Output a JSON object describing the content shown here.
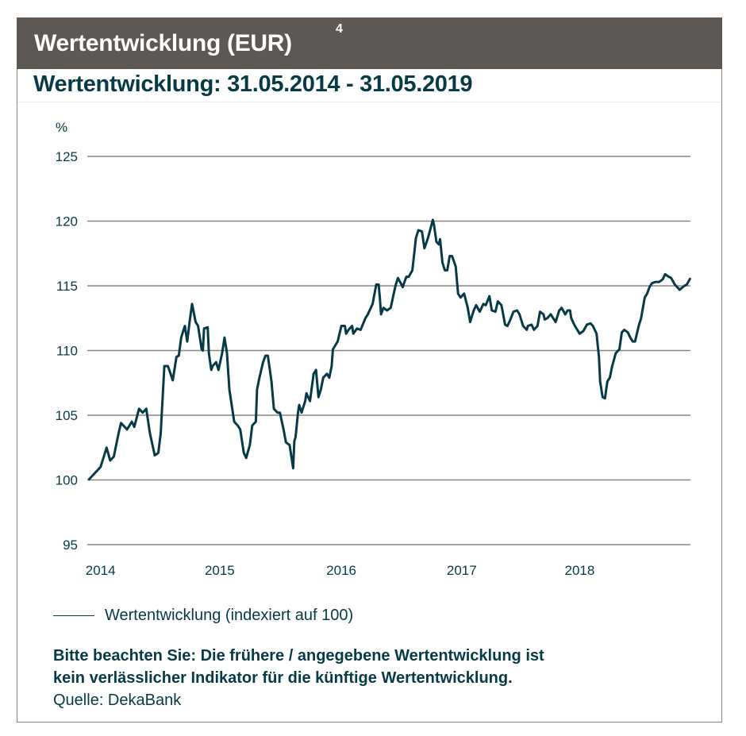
{
  "header": {
    "title": "Wertentwicklung (EUR)",
    "footnote": "4"
  },
  "subtitle": "Wertentwicklung: 31.05.2014 - 31.05.2019",
  "colors": {
    "header_bg": "#5e5854",
    "line": "#063a45",
    "grid": "#8a8480",
    "text": "#063a45"
  },
  "chart_data": {
    "type": "line",
    "ylabel": "%",
    "ylim": [
      95,
      125
    ],
    "yticks": [
      95,
      100,
      105,
      110,
      115,
      120,
      125
    ],
    "xlim": [
      2014.4,
      2019.41
    ],
    "xticks": [
      {
        "label": "2014",
        "at": 2014.51
      },
      {
        "label": "2015",
        "at": 2015.5
      },
      {
        "label": "2016",
        "at": 2016.51
      },
      {
        "label": "2017",
        "at": 2017.51
      },
      {
        "label": "2018",
        "at": 2018.49
      }
    ],
    "grid": "horizontal",
    "legend_position": "bottom-left",
    "series": [
      {
        "name": "Wertentwicklung (indexiert auf 100)",
        "x": [
          2014.41,
          2014.48,
          2014.51,
          2014.56,
          2014.59,
          2014.62,
          2014.66,
          2014.68,
          2014.73,
          2014.77,
          2014.79,
          2014.83,
          2014.86,
          2014.89,
          2014.92,
          2014.96,
          2014.99,
          2015.01,
          2015.04,
          2015.07,
          2015.11,
          2015.14,
          2015.16,
          2015.18,
          2015.21,
          2015.23,
          2015.25,
          2015.27,
          2015.3,
          2015.32,
          2015.35,
          2015.36,
          2015.37,
          2015.4,
          2015.41,
          2015.43,
          2015.44,
          2015.47,
          2015.49,
          2015.52,
          2015.54,
          2015.56,
          2015.58,
          2015.62,
          2015.65,
          2015.67,
          2015.7,
          2015.72,
          2015.75,
          2015.77,
          2015.8,
          2015.81,
          2015.83,
          2015.86,
          2015.88,
          2015.9,
          2015.93,
          2015.95,
          2015.98,
          2016.0,
          2016.03,
          2016.05,
          2016.08,
          2016.11,
          2016.12,
          2016.13,
          2016.15,
          2016.16,
          2016.18,
          2016.21,
          2016.22,
          2016.25,
          2016.28,
          2016.3,
          2016.32,
          2016.34,
          2016.36,
          2016.39,
          2016.41,
          2016.43,
          2016.44,
          2016.48,
          2016.51,
          2016.54,
          2016.55,
          2016.57,
          2016.6,
          2016.61,
          2016.64,
          2016.67,
          2016.71,
          2016.73,
          2016.77,
          2016.8,
          2016.82,
          2016.83,
          2016.84,
          2016.86,
          2016.89,
          2016.92,
          2016.96,
          2016.98,
          2017.01,
          2017.02,
          2017.05,
          2017.07,
          2017.1,
          2017.13,
          2017.15,
          2017.18,
          2017.2,
          2017.23,
          2017.27,
          2017.28,
          2017.3,
          2017.32,
          2017.33,
          2017.35,
          2017.37,
          2017.39,
          2017.41,
          2017.43,
          2017.46,
          2017.48,
          2017.5,
          2017.53,
          2017.56,
          2017.58,
          2017.59,
          2017.61,
          2017.63,
          2017.66,
          2017.69,
          2017.71,
          2017.74,
          2017.76,
          2017.79,
          2017.81,
          2017.84,
          2017.85,
          2017.87,
          2017.89,
          2017.91,
          2017.94,
          2017.97,
          2017.99,
          2018.01,
          2018.02,
          2018.05,
          2018.06,
          2018.09,
          2018.11,
          2018.14,
          2018.16,
          2018.19,
          2018.2,
          2018.22,
          2018.25,
          2018.27,
          2018.29,
          2018.32,
          2018.34,
          2018.37,
          2018.39,
          2018.41,
          2018.42,
          2018.45,
          2018.49,
          2018.52,
          2018.55,
          2018.58,
          2018.6,
          2018.63,
          2018.65,
          2018.66,
          2018.68,
          2018.7,
          2018.72,
          2018.74,
          2018.76,
          2018.79,
          2018.82,
          2018.84,
          2018.86,
          2018.89,
          2018.91,
          2018.93,
          2018.95,
          2018.98,
          2019.0,
          2019.03,
          2019.05,
          2019.07,
          2019.09,
          2019.12,
          2019.15,
          2019.18,
          2019.2,
          2019.23,
          2019.25,
          2019.28,
          2019.3,
          2019.32,
          2019.36,
          2019.38,
          2019.41
        ],
        "values": [
          100.0,
          100.7,
          101.0,
          102.5,
          101.5,
          101.8,
          103.6,
          104.4,
          103.9,
          104.5,
          104.1,
          105.5,
          105.2,
          105.5,
          103.6,
          101.9,
          102.1,
          103.6,
          108.8,
          108.8,
          107.7,
          109.5,
          109.6,
          111.0,
          111.9,
          110.7,
          112.2,
          113.6,
          112.2,
          111.9,
          110.1,
          110.0,
          111.7,
          111.8,
          109.8,
          108.5,
          108.8,
          109.1,
          108.5,
          109.8,
          111.0,
          109.8,
          107.0,
          104.5,
          104.2,
          103.9,
          102.1,
          101.7,
          102.7,
          104.2,
          104.5,
          107.0,
          107.9,
          109.1,
          109.6,
          109.6,
          107.6,
          105.5,
          105.2,
          105.2,
          103.9,
          102.9,
          102.7,
          100.9,
          103.0,
          103.3,
          105.2,
          105.8,
          105.2,
          106.1,
          106.7,
          106.1,
          108.2,
          108.5,
          106.4,
          107.0,
          107.9,
          108.2,
          107.9,
          108.8,
          110.1,
          110.7,
          111.9,
          111.9,
          111.3,
          111.6,
          111.9,
          111.3,
          111.7,
          111.6,
          112.5,
          112.8,
          113.6,
          115.1,
          115.1,
          114.1,
          112.8,
          113.3,
          113.1,
          113.3,
          115.0,
          115.6,
          115.1,
          114.9,
          115.7,
          115.7,
          116.2,
          118.7,
          119.3,
          119.2,
          117.9,
          118.7,
          120.1,
          119.7,
          118.4,
          118.2,
          118.6,
          116.8,
          116.2,
          116.2,
          117.3,
          117.3,
          116.5,
          114.4,
          114.1,
          114.4,
          113.3,
          112.2,
          112.5,
          113.1,
          113.5,
          113.0,
          113.6,
          113.5,
          114.2,
          113.1,
          113.0,
          113.8,
          113.5,
          113.0,
          112.0,
          111.9,
          112.3,
          113.0,
          113.1,
          112.8,
          112.2,
          111.9,
          111.6,
          111.9,
          112.0,
          111.6,
          111.9,
          113.0,
          112.8,
          112.4,
          112.5,
          112.8,
          112.5,
          112.2,
          113.1,
          113.3,
          112.8,
          113.1,
          113.1,
          112.5,
          111.9,
          111.3,
          111.5,
          112.0,
          112.1,
          111.9,
          111.3,
          109.5,
          107.6,
          106.4,
          106.3,
          107.6,
          107.9,
          108.8,
          109.8,
          110.1,
          111.4,
          111.6,
          111.4,
          111.0,
          110.7,
          110.7,
          111.9,
          112.5,
          114.1,
          114.4,
          114.9,
          115.2,
          115.3,
          115.3,
          115.5,
          115.9,
          115.7,
          115.6,
          115.1,
          114.9,
          114.7,
          115.0,
          115.1,
          115.6
        ]
      }
    ]
  },
  "notes": {
    "line1": "Bitte beachten Sie: Die frühere / angegebene Wertentwicklung ist",
    "line2": "kein verlässlicher Indikator für die künftige Wertentwicklung.",
    "source": "Quelle: DekaBank"
  }
}
